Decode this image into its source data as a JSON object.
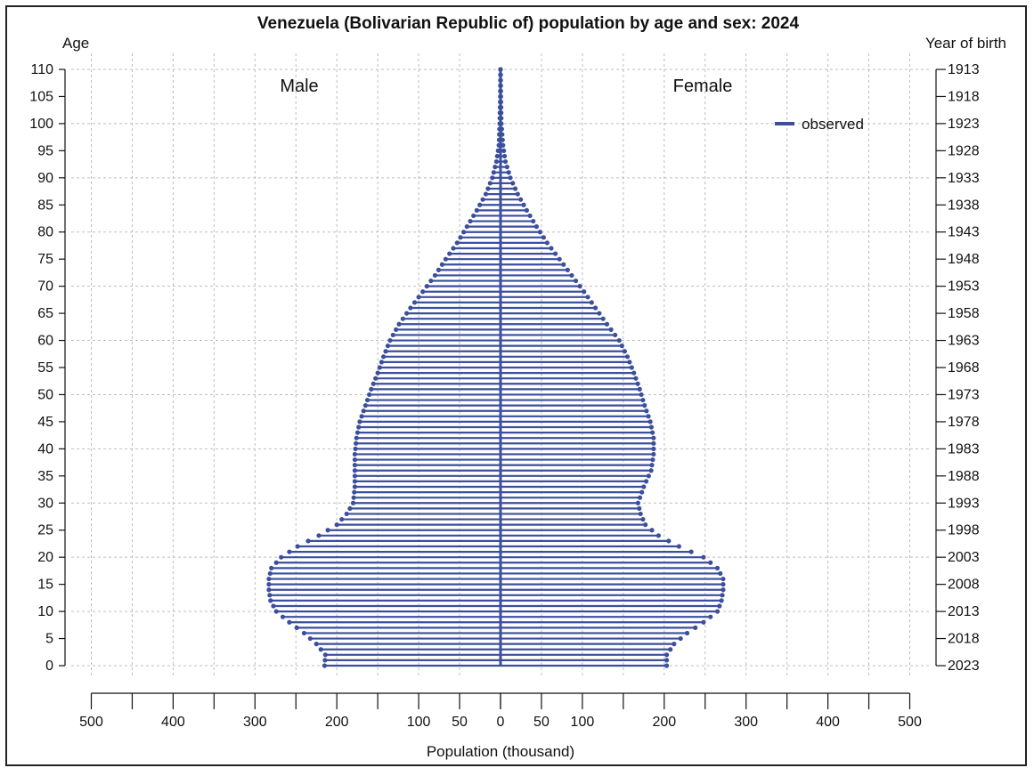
{
  "chart_data": {
    "type": "bar",
    "orientation": "horizontal-pyramid",
    "title": "Venezuela (Bolivarian Republic of) population by age and sex: 2024",
    "ylabel_left": "Age",
    "ylabel_right": "Year of birth",
    "xlabel": "Population (thousand)",
    "side_labels": {
      "left": "Male",
      "right": "Female"
    },
    "legend": {
      "entries": [
        "observed"
      ],
      "placement": "top-right",
      "color": "#3b4f9c"
    },
    "xlim": [
      0,
      500
    ],
    "ylim": [
      0,
      110
    ],
    "grid": true,
    "age_ticks": [
      "0",
      "5",
      "10",
      "15",
      "20",
      "25",
      "30",
      "35",
      "40",
      "45",
      "50",
      "55",
      "60",
      "65",
      "70",
      "75",
      "80",
      "85",
      "90",
      "95",
      "100",
      "105",
      "110"
    ],
    "year_ticks": [
      "2023",
      "2018",
      "2013",
      "2008",
      "2003",
      "1998",
      "1993",
      "1988",
      "1983",
      "1978",
      "1973",
      "1968",
      "1963",
      "1958",
      "1953",
      "1948",
      "1943",
      "1938",
      "1933",
      "1928",
      "1923",
      "1918",
      "1913"
    ],
    "x_ticks_left": [
      "500",
      "400",
      "300",
      "200",
      "100",
      "50",
      "0"
    ],
    "x_ticks_right": [
      "0",
      "50",
      "100",
      "200",
      "300",
      "400",
      "500"
    ],
    "age_knots": [
      0,
      2,
      4,
      6,
      8,
      10,
      12,
      14,
      16,
      18,
      20,
      22,
      24,
      26,
      28,
      30,
      33,
      36,
      39,
      42,
      45,
      48,
      51,
      54,
      57,
      60,
      63,
      66,
      69,
      72,
      75,
      78,
      81,
      84,
      87,
      90,
      93,
      96,
      100,
      105,
      110
    ],
    "male_knots": [
      215,
      214,
      225,
      240,
      258,
      274,
      281,
      283,
      283,
      280,
      268,
      248,
      222,
      200,
      188,
      180,
      178,
      178,
      178,
      176,
      172,
      165,
      158,
      150,
      143,
      135,
      124,
      110,
      95,
      80,
      67,
      53,
      41,
      29,
      18,
      10,
      5,
      2,
      1,
      0.3,
      0.1
    ],
    "female_knots": [
      203,
      203,
      212,
      228,
      248,
      265,
      270,
      272,
      272,
      265,
      248,
      218,
      193,
      177,
      171,
      168,
      175,
      184,
      187,
      187,
      183,
      176,
      170,
      163,
      155,
      145,
      130,
      116,
      102,
      87,
      72,
      57,
      44,
      32,
      21,
      12,
      6,
      3,
      1,
      0.4,
      0.1
    ],
    "series": [
      {
        "name": "observed (Male)",
        "side": "left",
        "ages": "0-110",
        "values_source": "male_knots"
      },
      {
        "name": "observed (Female)",
        "side": "right",
        "ages": "0-110",
        "values_source": "female_knots"
      }
    ]
  }
}
